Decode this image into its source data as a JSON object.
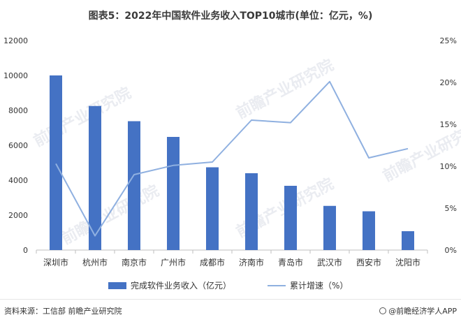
{
  "title": "图表5：2022年中国软件业务收入TOP10城市(单位：亿元，%)",
  "footer": {
    "source": "资料来源：工信部 前瞻产业研究院",
    "brand": "@前瞻经济学人APP"
  },
  "watermark": "前瞻产业研究院",
  "colors": {
    "bar": "#4472c4",
    "line": "#8fb0e0",
    "axis": "#bfbfbf",
    "text": "#333333"
  },
  "chart_data": {
    "type": "bar",
    "categories": [
      "深圳市",
      "杭州市",
      "南京市",
      "广州市",
      "成都市",
      "济南市",
      "青岛市",
      "武汉市",
      "西安市",
      "沈阳市"
    ],
    "series": [
      {
        "name": "完成软件业务收入（亿元）",
        "type": "bar",
        "axis": "left",
        "values": [
          10000,
          8250,
          7380,
          6480,
          4740,
          4400,
          3680,
          2530,
          2220,
          1080
        ]
      },
      {
        "name": "累计增速（%）",
        "type": "line",
        "axis": "right",
        "values": [
          10.3,
          1.7,
          9.0,
          10.1,
          10.5,
          15.5,
          15.2,
          20.1,
          11.0,
          12.1
        ]
      }
    ],
    "left_axis": {
      "min": 0,
      "max": 12000,
      "ticks": [
        "0",
        "2000",
        "4000",
        "6000",
        "8000",
        "10000",
        "12000"
      ]
    },
    "right_axis": {
      "min": 0,
      "max": 25,
      "ticks": [
        "0%",
        "5%",
        "10%",
        "15%",
        "20%",
        "25%"
      ]
    },
    "grid": false,
    "legend": "bottom-center"
  }
}
